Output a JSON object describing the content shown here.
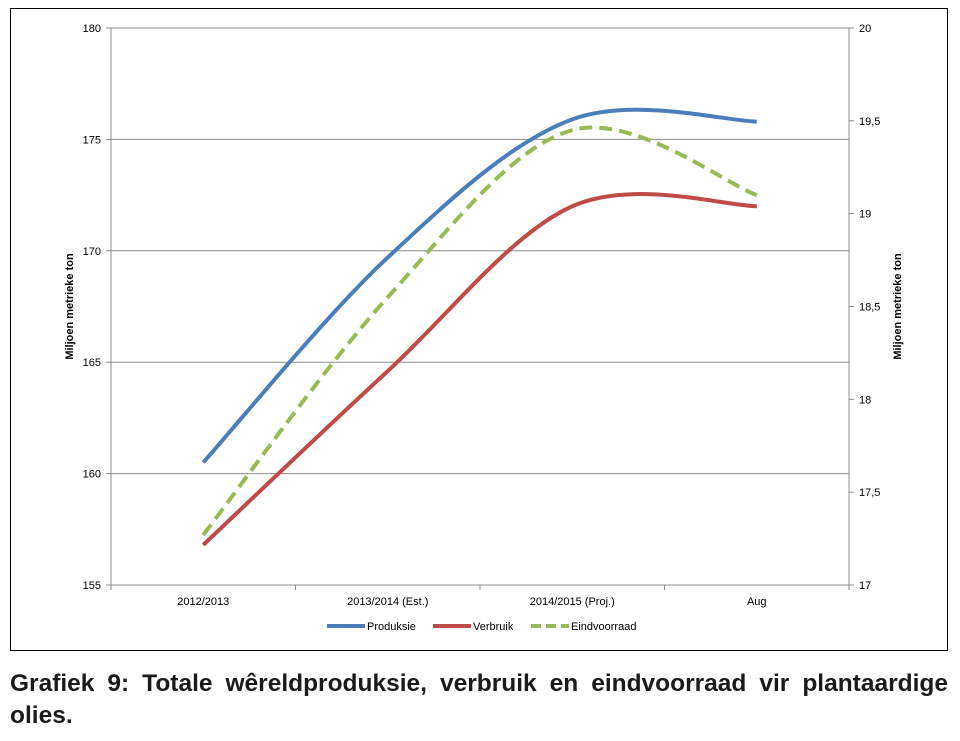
{
  "chart_data": {
    "type": "line",
    "categories": [
      "2012/2013",
      "2013/2014 (Est.)",
      "2014/2015 (Proj.)",
      "Aug"
    ],
    "ylabel": "Miljoen metrieke ton",
    "y2label": "Miljoen metrieke ton",
    "ylim": [
      155,
      180
    ],
    "y2lim": [
      17,
      20
    ],
    "yticks": [
      "155",
      "160",
      "165",
      "170",
      "175",
      "180"
    ],
    "y2ticks": [
      "17",
      "17,5",
      "18",
      "18,5",
      "19",
      "19,5",
      "20"
    ],
    "grid": true,
    "legend_position": "bottom",
    "series": [
      {
        "name": "Produksie",
        "axis": "left",
        "values": [
          160.5,
          169.7,
          175.9,
          175.8
        ],
        "color": "#4a7ebb",
        "dash": false
      },
      {
        "name": "Verbruik",
        "axis": "left",
        "values": [
          156.8,
          164.6,
          172.0,
          172.0
        ],
        "color": "#be4b48",
        "dash": false
      },
      {
        "name": "Eindvoorraad",
        "axis": "right",
        "values": [
          17.27,
          18.55,
          19.45,
          19.1
        ],
        "color": "#98b954",
        "dash": true
      }
    ]
  },
  "caption": "Grafiek 9: Totale wêreldproduksie, verbruik en eindvoorraad vir plantaardige olies."
}
